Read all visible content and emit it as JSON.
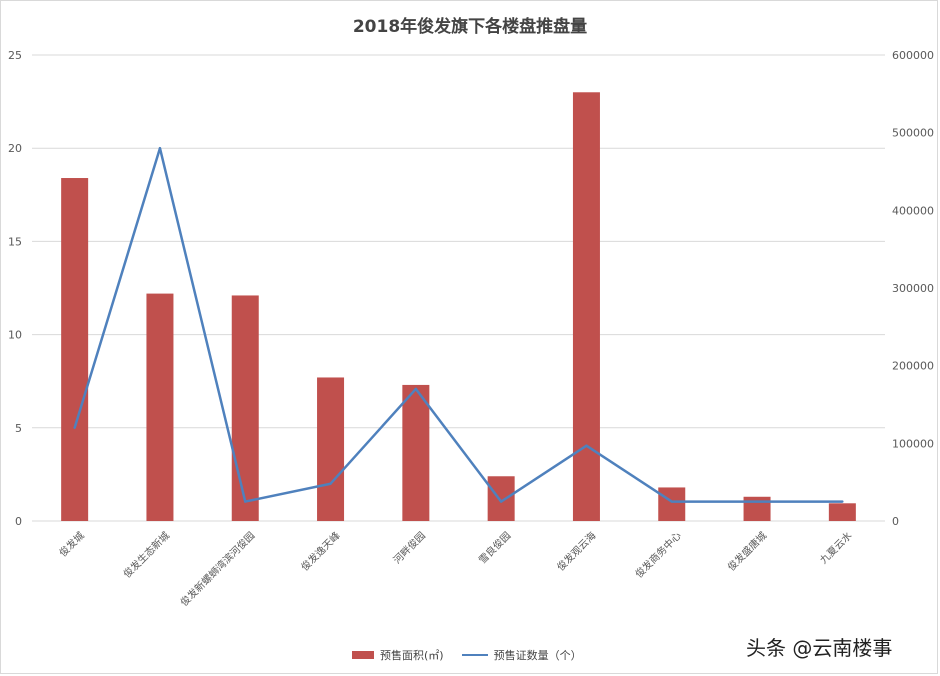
{
  "chart_data": {
    "type": "bar",
    "title": "2018年俊发旗下各楼盘推盘量",
    "categories": [
      "俊发城",
      "俊发生态新城",
      "俊发新螺蛳湾滨河俊园",
      "俊发逸天峰",
      "河畔俊园",
      "雪良俊园",
      "俊发观云海",
      "俊发商务中心",
      "俊发盛唐城",
      "九夏云水"
    ],
    "series": [
      {
        "name": "预售面积(㎡)",
        "type": "bar",
        "axis": "left",
        "color": "#c0504d",
        "values": [
          18.4,
          12.2,
          12.1,
          7.7,
          7.3,
          2.4,
          23.0,
          1.8,
          1.3,
          0.95
        ]
      },
      {
        "name": "预售证数量（个）",
        "type": "line",
        "axis": "right",
        "color": "#4f81bd",
        "values": [
          120000,
          480000,
          25000,
          48000,
          170000,
          25000,
          97000,
          25000,
          25000,
          25000
        ]
      }
    ],
    "yleft": {
      "ticks": [
        "0",
        "5",
        "10",
        "15",
        "20",
        "25"
      ],
      "lim": [
        0,
        25
      ]
    },
    "yright": {
      "ticks": [
        "0",
        "100000",
        "200000",
        "300000",
        "400000",
        "500000",
        "600000"
      ],
      "lim": [
        0,
        600000
      ]
    },
    "grid": true,
    "legend_position": "bottom"
  },
  "legend": {
    "bar_label": "预售面积(㎡)",
    "line_label": "预售证数量（个）"
  },
  "watermark": "头条 @云南楼事"
}
